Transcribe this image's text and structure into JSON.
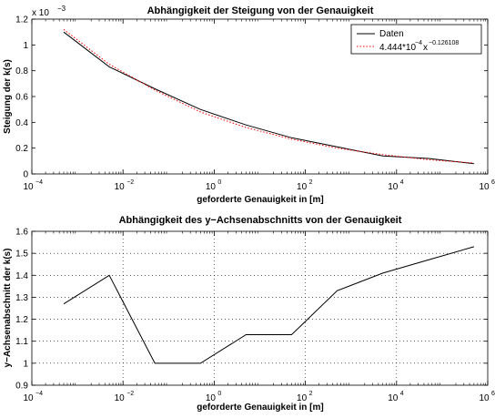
{
  "chart_data": [
    {
      "type": "line",
      "title": "Abhängigkeit der Steigung von der Genauigkeit",
      "xlabel": "geforderte Genauigkeit in [m]",
      "ylabel": "Steigung der k(s)",
      "xscale": "log",
      "xlim": [
        0.0001,
        1000000
      ],
      "ylim": [
        0,
        1.2
      ],
      "y_multiplier_label": "x 10",
      "y_multiplier_exponent": "−3",
      "grid": false,
      "legend_position": "top-right",
      "x_tick_labels": [
        {
          "value": 0.0001,
          "base": "10",
          "exp": "−4"
        },
        {
          "value": 0.01,
          "base": "10",
          "exp": "−2"
        },
        {
          "value": 1,
          "base": "10",
          "exp": "0"
        },
        {
          "value": 100,
          "base": "10",
          "exp": "2"
        },
        {
          "value": 10000,
          "base": "10",
          "exp": "4"
        },
        {
          "value": 1000000,
          "base": "10",
          "exp": "6"
        }
      ],
      "y_ticks": [
        0,
        0.2,
        0.4,
        0.6,
        0.8,
        1,
        1.2
      ],
      "y_tick_labels": [
        "0",
        "0.2",
        "0.4",
        "0.6",
        "0.8",
        "1",
        "1.2"
      ],
      "series": [
        {
          "name": "Daten",
          "color": "#000000",
          "style": "solid",
          "x": [
            0.0005,
            0.005,
            0.05,
            0.5,
            5,
            50,
            500,
            5000,
            50000,
            500000
          ],
          "y": [
            1.1,
            0.83,
            0.66,
            0.5,
            0.38,
            0.28,
            0.21,
            0.14,
            0.12,
            0.08
          ]
        },
        {
          "name_base": "4.444*10",
          "name_exp1": "−4",
          "name_mid": "x",
          "name_exp2": "−0.126108",
          "color": "#ff0000",
          "style": "dotted",
          "x": [
            0.0005,
            0.005,
            0.05,
            0.5,
            5,
            50,
            500,
            5000,
            50000,
            500000
          ],
          "y": [
            1.12,
            0.85,
            0.65,
            0.48,
            0.36,
            0.27,
            0.2,
            0.15,
            0.11,
            0.085
          ]
        }
      ]
    },
    {
      "type": "line",
      "title": "Abhängigkeit des y−Achsenabschnitts von der Genauigkeit",
      "xlabel": "geforderte Genauigkeit in [m]",
      "ylabel": "y−Achsenabschnitt der k(s)",
      "xscale": "log",
      "xlim": [
        0.0001,
        1000000
      ],
      "ylim": [
        0.9,
        1.6
      ],
      "grid": true,
      "x_tick_labels": [
        {
          "value": 0.0001,
          "base": "10",
          "exp": "−4"
        },
        {
          "value": 0.01,
          "base": "10",
          "exp": "−2"
        },
        {
          "value": 1,
          "base": "10",
          "exp": "0"
        },
        {
          "value": 100,
          "base": "10",
          "exp": "2"
        },
        {
          "value": 10000,
          "base": "10",
          "exp": "4"
        },
        {
          "value": 1000000,
          "base": "10",
          "exp": "6"
        }
      ],
      "y_ticks": [
        0.9,
        1,
        1.1,
        1.2,
        1.3,
        1.4,
        1.5,
        1.6
      ],
      "y_tick_labels": [
        "0.9",
        "1",
        "1.1",
        "1.2",
        "1.3",
        "1.4",
        "1.5",
        "1.6"
      ],
      "series": [
        {
          "color": "#000000",
          "style": "solid",
          "x": [
            0.0005,
            0.005,
            0.05,
            0.5,
            5,
            50,
            500,
            5000,
            50000,
            500000
          ],
          "y": [
            1.27,
            1.4,
            1.0,
            1.0,
            1.13,
            1.13,
            1.33,
            1.41,
            1.47,
            1.53
          ]
        }
      ]
    }
  ]
}
